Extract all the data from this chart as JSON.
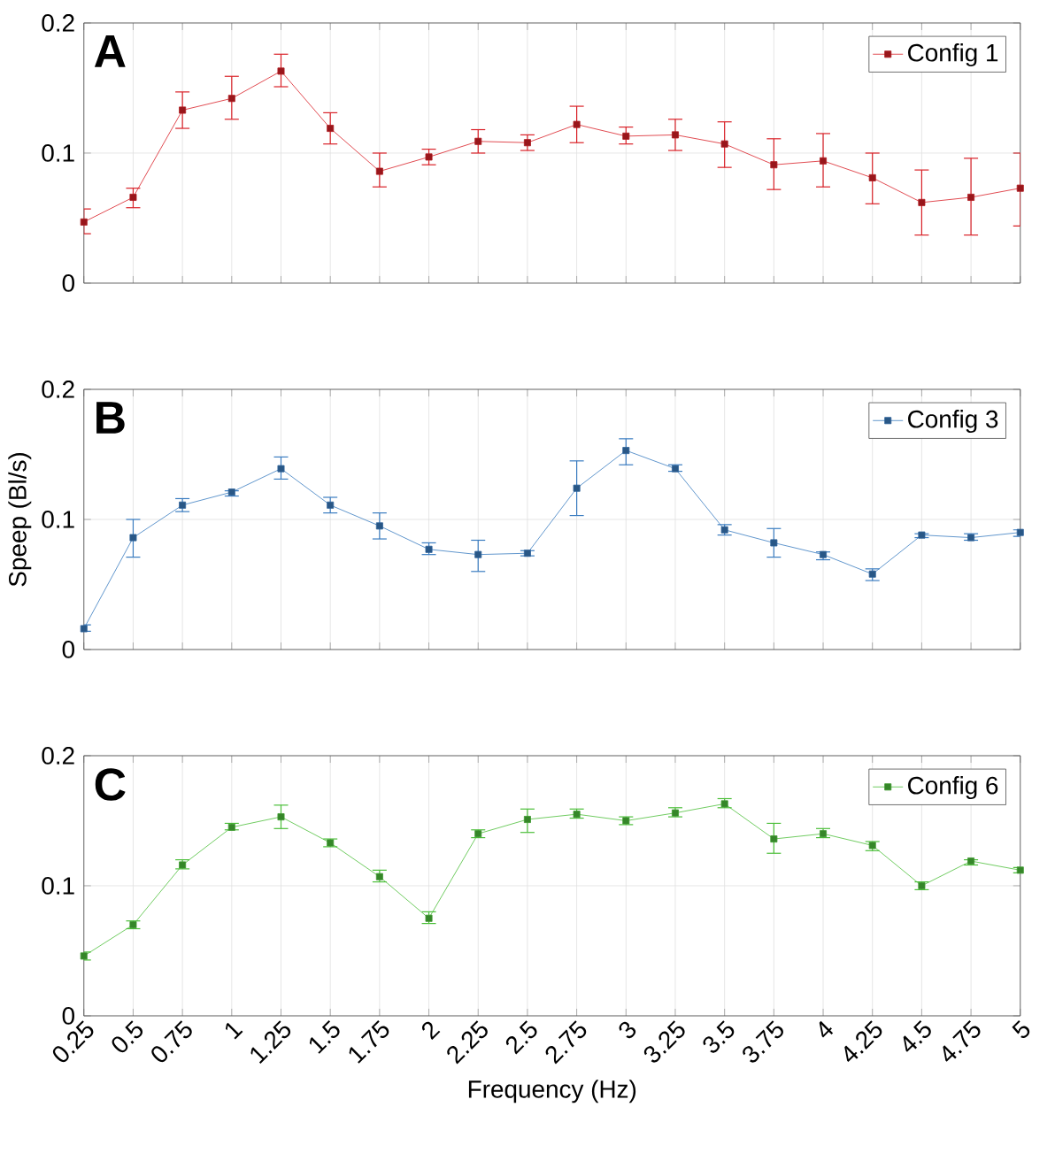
{
  "chart_data": [
    {
      "type": "line",
      "annotations": [
        "A"
      ],
      "x": [
        0.25,
        0.5,
        0.75,
        1,
        1.25,
        1.5,
        1.75,
        2,
        2.25,
        2.5,
        2.75,
        3,
        3.25,
        3.5,
        3.75,
        4,
        4.25,
        4.5,
        4.75,
        5
      ],
      "xlim": [
        0.25,
        5
      ],
      "xticks": [
        0.25,
        0.5,
        0.75,
        1,
        1.25,
        1.5,
        1.75,
        2,
        2.25,
        2.5,
        2.75,
        3,
        3.25,
        3.5,
        3.75,
        4,
        4.25,
        4.5,
        4.75,
        5
      ],
      "ylim": [
        0,
        0.2
      ],
      "yticks": [
        0,
        0.1,
        0.2
      ],
      "grid": true,
      "legend": "top right",
      "marker": "square",
      "tick_labels": "y",
      "series": [
        {
          "name": "Config 1",
          "color": "#d92027",
          "values": [
            0.047,
            0.066,
            0.133,
            0.142,
            0.163,
            0.119,
            0.086,
            0.097,
            0.109,
            0.108,
            0.122,
            0.113,
            0.114,
            0.107,
            0.091,
            0.094,
            0.081,
            0.062,
            0.066,
            0.073
          ],
          "errors": [
            [
              0.038,
              0.057
            ],
            [
              0.058,
              0.073
            ],
            [
              0.119,
              0.147
            ],
            [
              0.126,
              0.159
            ],
            [
              0.151,
              0.176
            ],
            [
              0.107,
              0.131
            ],
            [
              0.074,
              0.1
            ],
            [
              0.091,
              0.103
            ],
            [
              0.1,
              0.118
            ],
            [
              0.102,
              0.114
            ],
            [
              0.108,
              0.136
            ],
            [
              0.107,
              0.12
            ],
            [
              0.102,
              0.126
            ],
            [
              0.089,
              0.124
            ],
            [
              0.072,
              0.111
            ],
            [
              0.074,
              0.115
            ],
            [
              0.061,
              0.1
            ],
            [
              0.037,
              0.087
            ],
            [
              0.037,
              0.096
            ],
            [
              0.044,
              0.1
            ]
          ]
        }
      ]
    },
    {
      "type": "line",
      "annotations": [
        "B"
      ],
      "ylabel": "Speep (Bl/s)",
      "x": [
        0.25,
        0.5,
        0.75,
        1,
        1.25,
        1.5,
        1.75,
        2,
        2.25,
        2.5,
        2.75,
        3,
        3.25,
        3.5,
        3.75,
        4,
        4.25,
        4.5,
        4.75,
        5
      ],
      "xlim": [
        0.25,
        5
      ],
      "xticks": [
        0.25,
        0.5,
        0.75,
        1,
        1.25,
        1.5,
        1.75,
        2,
        2.25,
        2.5,
        2.75,
        3,
        3.25,
        3.5,
        3.75,
        4,
        4.25,
        4.5,
        4.75,
        5
      ],
      "ylim": [
        0,
        0.2
      ],
      "yticks": [
        0,
        0.1,
        0.2
      ],
      "grid": true,
      "legend": "top right",
      "marker": "square",
      "tick_labels": "y",
      "series": [
        {
          "name": "Config 3",
          "color": "#3a7cc0",
          "values": [
            0.016,
            0.086,
            0.111,
            0.121,
            0.139,
            0.111,
            0.095,
            0.077,
            0.073,
            0.074,
            0.124,
            0.153,
            0.139,
            0.092,
            0.082,
            0.073,
            0.058,
            0.088,
            0.086,
            0.09
          ],
          "errors": [
            [
              0.014,
              0.019
            ],
            [
              0.071,
              0.1
            ],
            [
              0.106,
              0.116
            ],
            [
              0.118,
              0.122
            ],
            [
              0.131,
              0.148
            ],
            [
              0.105,
              0.117
            ],
            [
              0.085,
              0.105
            ],
            [
              0.073,
              0.082
            ],
            [
              0.06,
              0.084
            ],
            [
              0.072,
              0.076
            ],
            [
              0.103,
              0.145
            ],
            [
              0.142,
              0.162
            ],
            [
              0.137,
              0.142
            ],
            [
              0.088,
              0.096
            ],
            [
              0.071,
              0.093
            ],
            [
              0.069,
              0.075
            ],
            [
              0.053,
              0.062
            ],
            [
              0.086,
              0.089
            ],
            [
              0.084,
              0.089
            ],
            [
              0.087,
              0.092
            ]
          ]
        }
      ]
    },
    {
      "type": "line",
      "annotations": [
        "C"
      ],
      "xlabel": "Frequency (Hz)",
      "x": [
        0.25,
        0.5,
        0.75,
        1,
        1.25,
        1.5,
        1.75,
        2,
        2.25,
        2.5,
        2.75,
        3,
        3.25,
        3.5,
        3.75,
        4,
        4.25,
        4.5,
        4.75,
        5
      ],
      "xlim": [
        0.25,
        5
      ],
      "xticks": [
        0.25,
        0.5,
        0.75,
        1,
        1.25,
        1.5,
        1.75,
        2,
        2.25,
        2.5,
        2.75,
        3,
        3.25,
        3.5,
        3.75,
        4,
        4.25,
        4.5,
        4.75,
        5
      ],
      "ylim": [
        0,
        0.2
      ],
      "yticks": [
        0,
        0.1,
        0.2
      ],
      "grid": true,
      "legend": "top right",
      "marker": "square",
      "series": [
        {
          "name": "Config 6",
          "color": "#4cbf3a",
          "values": [
            0.046,
            0.07,
            0.116,
            0.145,
            0.153,
            0.133,
            0.107,
            0.075,
            0.14,
            0.151,
            0.155,
            0.15,
            0.156,
            0.163,
            0.136,
            0.14,
            0.131,
            0.1,
            0.119,
            0.112
          ],
          "errors": [
            [
              0.043,
              0.049
            ],
            [
              0.067,
              0.073
            ],
            [
              0.113,
              0.12
            ],
            [
              0.143,
              0.148
            ],
            [
              0.144,
              0.162
            ],
            [
              0.13,
              0.136
            ],
            [
              0.103,
              0.112
            ],
            [
              0.071,
              0.08
            ],
            [
              0.137,
              0.143
            ],
            [
              0.141,
              0.159
            ],
            [
              0.152,
              0.159
            ],
            [
              0.147,
              0.153
            ],
            [
              0.153,
              0.16
            ],
            [
              0.16,
              0.167
            ],
            [
              0.125,
              0.148
            ],
            [
              0.137,
              0.144
            ],
            [
              0.127,
              0.134
            ],
            [
              0.097,
              0.103
            ],
            [
              0.116,
              0.12
            ],
            [
              0.11,
              0.114
            ]
          ]
        }
      ]
    }
  ]
}
